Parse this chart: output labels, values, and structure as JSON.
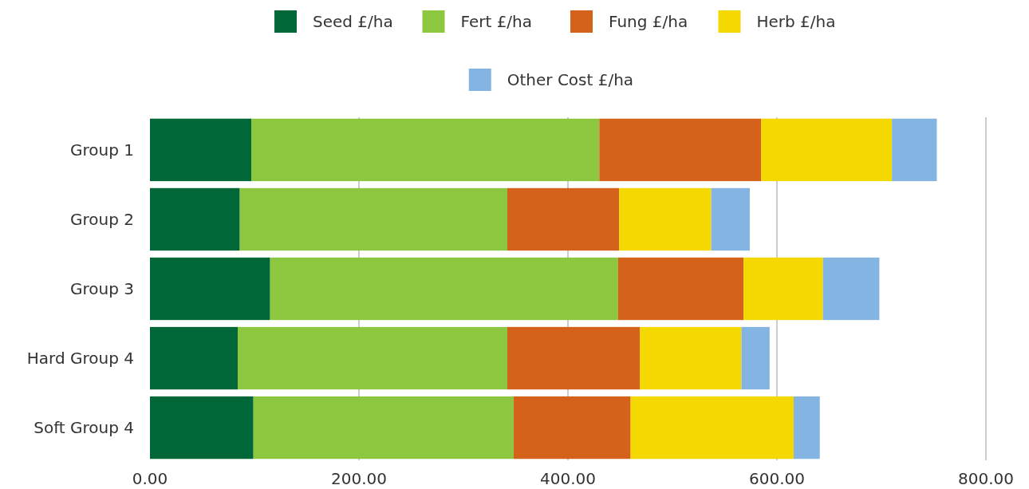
{
  "chart_data": {
    "type": "bar",
    "orientation": "horizontal",
    "stacked": true,
    "categories": [
      "Group 1",
      "Group 2",
      "Group 3",
      "Hard Group 4",
      "Soft Group 4"
    ],
    "series": [
      {
        "name": "Seed £/ha",
        "color": "#006838",
        "values": [
          97,
          86,
          115,
          84,
          99
        ]
      },
      {
        "name": "Fert £/ha",
        "color": "#8dc63f",
        "values": [
          333,
          256,
          333,
          258,
          249
        ]
      },
      {
        "name": "Fung £/ha",
        "color": "#d4621a",
        "values": [
          155,
          107,
          120,
          127,
          112
        ]
      },
      {
        "name": "Herb £/ha",
        "color": "#f5d800",
        "values": [
          125,
          88,
          76,
          97,
          156
        ]
      },
      {
        "name": "Other Cost £/ha",
        "color": "#84b4e2",
        "values": [
          43,
          37,
          54,
          27,
          25
        ]
      }
    ],
    "xlim": [
      0,
      800
    ],
    "xticks": [
      {
        "value": 0,
        "label": "0.00"
      },
      {
        "value": 200,
        "label": "200.00"
      },
      {
        "value": 400,
        "label": "400.00"
      },
      {
        "value": 600,
        "label": "600.00"
      },
      {
        "value": 800,
        "label": "800.00"
      }
    ],
    "grid": "x",
    "legend": "top"
  }
}
